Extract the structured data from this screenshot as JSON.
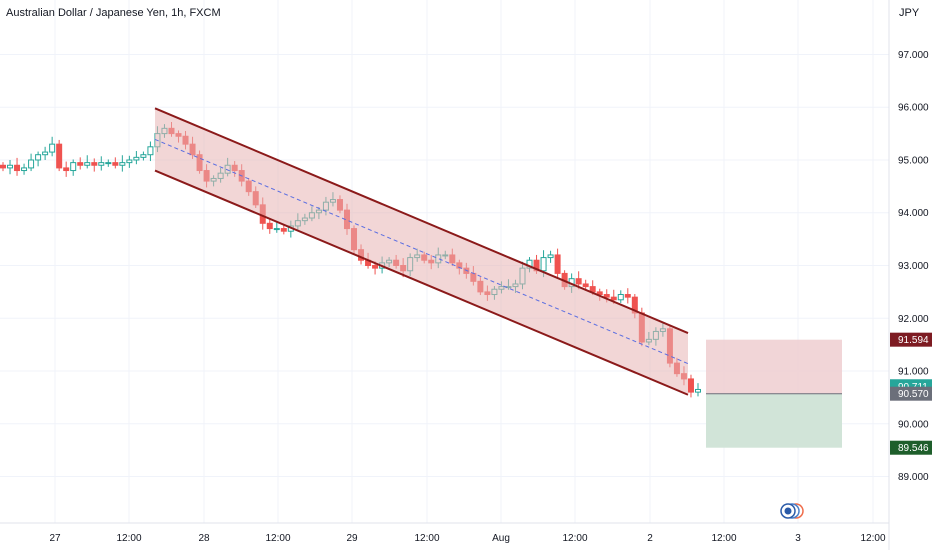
{
  "header": {
    "title": "Australian Dollar / Japanese Yen, 1h, FXCM",
    "currency": "JPY"
  },
  "colors": {
    "up": "#26a69a",
    "down": "#ef5350",
    "channel_line": "#8b1a1a",
    "channel_fill": "#e7b4b4",
    "median_line": "#5b6ee1",
    "stop_zone": "#efd0d3",
    "target_zone": "#cfe3d6",
    "stop_tag": "#7d1b22",
    "target_tag": "#1e5e2b",
    "current_tag": "#26a69a",
    "entry_tag": "#6b6f7a"
  },
  "chart_data": {
    "type": "candlestick",
    "title": "Australian Dollar / Japanese Yen, 1h, FXCM",
    "ylabel": "JPY",
    "ylim": [
      88.1,
      97.9
    ],
    "y_ticks": [
      "97.000",
      "96.000",
      "95.000",
      "94.000",
      "93.000",
      "92.000",
      "91.000",
      "90.000",
      "89.000"
    ],
    "x_ticks": [
      "27",
      "12:00",
      "28",
      "12:00",
      "29",
      "12:00",
      "Aug",
      "12:00",
      "2",
      "12:00",
      "3",
      "12:00"
    ],
    "price_path": [
      94.85,
      94.9,
      94.8,
      94.85,
      95.0,
      95.1,
      95.15,
      95.3,
      94.85,
      94.8,
      94.95,
      94.9,
      94.95,
      94.9,
      94.95,
      94.95,
      94.9,
      94.95,
      95.0,
      95.05,
      95.1,
      95.25,
      95.5,
      95.6,
      95.5,
      95.45,
      95.3,
      95.1,
      94.8,
      94.6,
      94.65,
      94.75,
      94.9,
      94.8,
      94.6,
      94.4,
      94.15,
      93.8,
      93.7,
      93.7,
      93.65,
      93.75,
      93.85,
      93.9,
      94.0,
      94.05,
      94.2,
      94.25,
      94.05,
      93.7,
      93.3,
      93.1,
      93.0,
      92.95,
      93.05,
      93.1,
      93.0,
      92.9,
      93.15,
      93.2,
      93.1,
      93.05,
      93.2,
      93.2,
      93.05,
      92.95,
      92.85,
      92.7,
      92.5,
      92.45,
      92.55,
      92.6,
      92.6,
      92.65,
      92.95,
      93.1,
      92.9,
      93.15,
      93.2,
      92.85,
      92.6,
      92.75,
      92.65,
      92.6,
      92.5,
      92.45,
      92.4,
      92.35,
      92.45,
      92.4,
      92.1,
      91.55,
      91.6,
      91.75,
      91.8,
      91.15,
      90.95,
      90.85,
      90.6,
      90.65
    ],
    "channel": {
      "upper": [
        [
          95.98,
          91.72
        ]
      ],
      "lower": [
        [
          94.8,
          90.55
        ]
      ],
      "median": [
        [
          95.39,
          91.14
        ]
      ]
    },
    "position": {
      "type": "long",
      "entry": 90.57,
      "stop": 91.594,
      "target": 89.546,
      "current": 90.711
    },
    "price_labels": {
      "stop": "91.594",
      "current": "90.711",
      "entry": "90.570",
      "target": "89.546"
    }
  }
}
